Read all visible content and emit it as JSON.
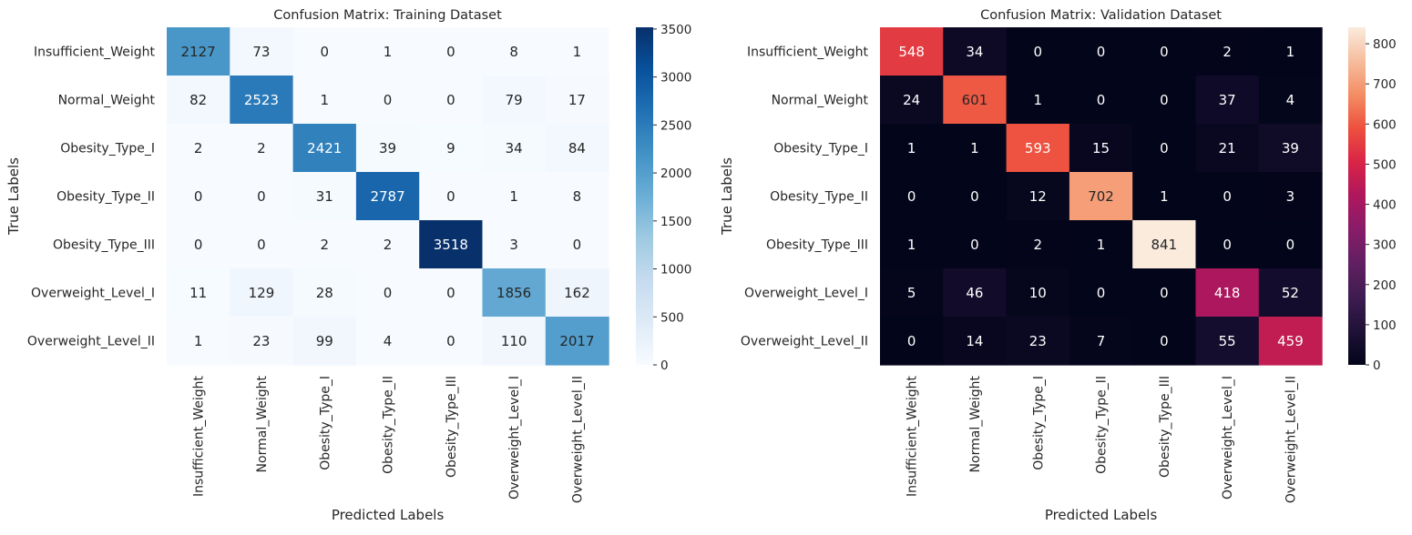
{
  "chart_data": [
    {
      "type": "heatmap",
      "title": "Confusion Matrix: Training Dataset",
      "xlabel": "Predicted Labels",
      "ylabel": "True Labels",
      "categories": [
        "Insufficient_Weight",
        "Normal_Weight",
        "Obesity_Type_I",
        "Obesity_Type_II",
        "Obesity_Type_III",
        "Overweight_Level_I",
        "Overweight_Level_II"
      ],
      "values": [
        [
          2127,
          73,
          0,
          1,
          0,
          8,
          1
        ],
        [
          82,
          2523,
          1,
          0,
          0,
          79,
          17
        ],
        [
          2,
          2,
          2421,
          39,
          9,
          34,
          84
        ],
        [
          0,
          0,
          31,
          2787,
          0,
          1,
          8
        ],
        [
          0,
          0,
          2,
          2,
          3518,
          3,
          0
        ],
        [
          11,
          129,
          28,
          0,
          0,
          1856,
          162
        ],
        [
          1,
          23,
          99,
          4,
          0,
          110,
          2017
        ]
      ],
      "colormap": "Blues",
      "color_range": [
        0,
        3518
      ],
      "colorbar_ticks": [
        0,
        500,
        1000,
        1500,
        2000,
        2500,
        3000,
        3500
      ]
    },
    {
      "type": "heatmap",
      "title": "Confusion Matrix: Validation Dataset",
      "xlabel": "Predicted Labels",
      "ylabel": "True Labels",
      "categories": [
        "Insufficient_Weight",
        "Normal_Weight",
        "Obesity_Type_I",
        "Obesity_Type_II",
        "Obesity_Type_III",
        "Overweight_Level_I",
        "Overweight_Level_II"
      ],
      "values": [
        [
          548,
          34,
          0,
          0,
          0,
          2,
          1
        ],
        [
          24,
          601,
          1,
          0,
          0,
          37,
          4
        ],
        [
          1,
          1,
          593,
          15,
          0,
          21,
          39
        ],
        [
          0,
          0,
          12,
          702,
          1,
          0,
          3
        ],
        [
          1,
          0,
          2,
          1,
          841,
          0,
          0
        ],
        [
          5,
          46,
          10,
          0,
          0,
          418,
          52
        ],
        [
          0,
          14,
          23,
          7,
          0,
          55,
          459
        ]
      ],
      "colormap": "rocket",
      "color_range": [
        0,
        841
      ],
      "colorbar_ticks": [
        0,
        100,
        200,
        300,
        400,
        500,
        600,
        700,
        800
      ]
    }
  ]
}
